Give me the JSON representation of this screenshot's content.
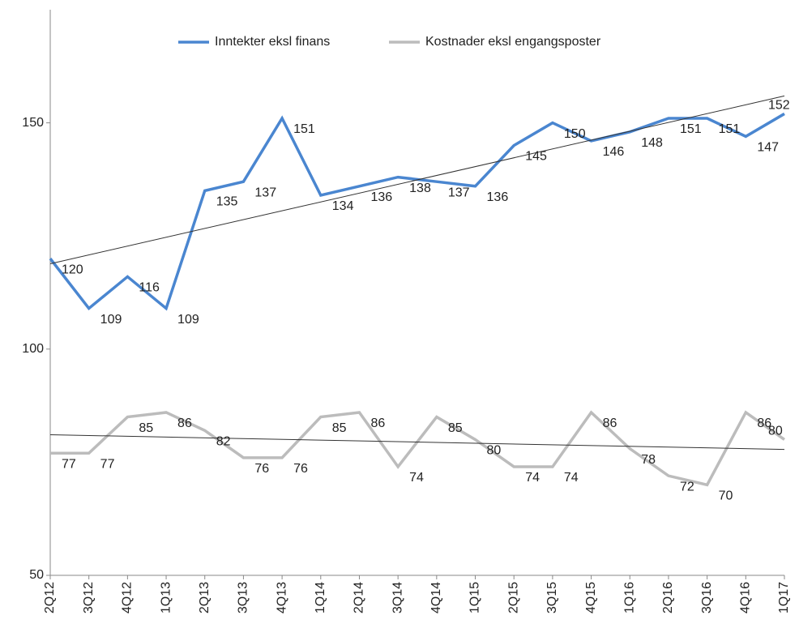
{
  "chart_data": {
    "type": "line",
    "categories": [
      "2Q12",
      "3Q12",
      "4Q12",
      "1Q13",
      "2Q13",
      "3Q13",
      "4Q13",
      "1Q14",
      "2Q14",
      "3Q14",
      "4Q14",
      "1Q15",
      "2Q15",
      "3Q15",
      "4Q15",
      "1Q16",
      "2Q16",
      "3Q16",
      "4Q16",
      "1Q17"
    ],
    "series": [
      {
        "name": "Inntekter eksl finans",
        "color": "#4a86d0",
        "trendline": "linear",
        "values": [
          120,
          109,
          116,
          109,
          135,
          137,
          151,
          134,
          136,
          138,
          137,
          136,
          145,
          150,
          146,
          148,
          151,
          151,
          147,
          152
        ]
      },
      {
        "name": "Kostnader eksl engangsposter",
        "color": "#bcbcbc",
        "trendline": "linear",
        "values": [
          77,
          77,
          85,
          86,
          82,
          76,
          76,
          85,
          86,
          74,
          85,
          80,
          74,
          74,
          86,
          78,
          72,
          70,
          86,
          80
        ]
      }
    ],
    "ylim": [
      50,
      175
    ],
    "yticks": [
      50,
      100,
      150
    ],
    "legend": "top"
  }
}
